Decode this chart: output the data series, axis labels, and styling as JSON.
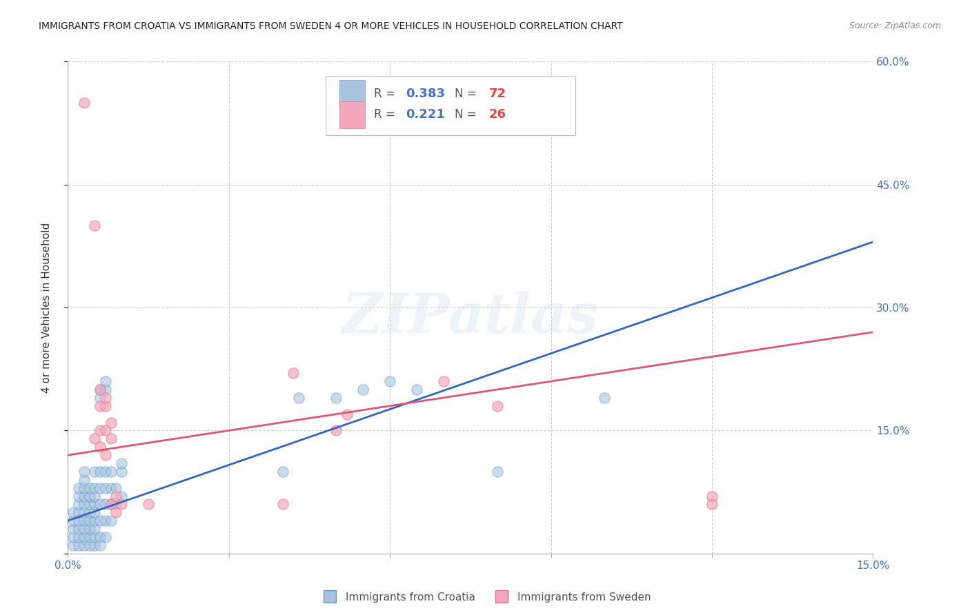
{
  "title": "IMMIGRANTS FROM CROATIA VS IMMIGRANTS FROM SWEDEN 4 OR MORE VEHICLES IN HOUSEHOLD CORRELATION CHART",
  "source": "Source: ZipAtlas.com",
  "ylabel": "4 or more Vehicles in Household",
  "xlim": [
    0.0,
    0.15
  ],
  "ylim": [
    0.0,
    0.6
  ],
  "xticks": [
    0.0,
    0.03,
    0.06,
    0.09,
    0.12,
    0.15
  ],
  "yticks": [
    0.0,
    0.15,
    0.3,
    0.45,
    0.6
  ],
  "right_ytick_labels": [
    "60.0%",
    "45.0%",
    "30.0%",
    "15.0%"
  ],
  "right_yticks": [
    0.6,
    0.45,
    0.3,
    0.15
  ],
  "croatia_color": "#a8c4e0",
  "croatia_edge_color": "#6699cc",
  "sweden_color": "#f4a7b9",
  "sweden_edge_color": "#dd7799",
  "croatia_R": 0.383,
  "croatia_N": 72,
  "sweden_R": 0.221,
  "sweden_N": 26,
  "legend_label_croatia": "Immigrants from Croatia",
  "legend_label_sweden": "Immigrants from Sweden",
  "watermark": "ZIPatlas",
  "background_color": "#ffffff",
  "grid_color": "#cccccc",
  "croatia_line_color": "#3366bb",
  "sweden_line_color": "#dd5577",
  "title_color": "#222222",
  "axis_tick_color": "#4472c4",
  "legend_R_color": "#555555",
  "legend_val_color": "#4472c4",
  "legend_N_color": "#dd4444",
  "croatia_trendline": [
    [
      0.0,
      0.04
    ],
    [
      0.15,
      0.38
    ]
  ],
  "sweden_trendline": [
    [
      0.0,
      0.12
    ],
    [
      0.15,
      0.27
    ]
  ],
  "croatia_scatter": [
    [
      0.001,
      0.01
    ],
    [
      0.001,
      0.02
    ],
    [
      0.001,
      0.03
    ],
    [
      0.001,
      0.04
    ],
    [
      0.001,
      0.05
    ],
    [
      0.002,
      0.01
    ],
    [
      0.002,
      0.02
    ],
    [
      0.002,
      0.03
    ],
    [
      0.002,
      0.04
    ],
    [
      0.002,
      0.05
    ],
    [
      0.002,
      0.06
    ],
    [
      0.002,
      0.07
    ],
    [
      0.002,
      0.08
    ],
    [
      0.003,
      0.01
    ],
    [
      0.003,
      0.02
    ],
    [
      0.003,
      0.03
    ],
    [
      0.003,
      0.04
    ],
    [
      0.003,
      0.05
    ],
    [
      0.003,
      0.06
    ],
    [
      0.003,
      0.07
    ],
    [
      0.003,
      0.08
    ],
    [
      0.003,
      0.09
    ],
    [
      0.003,
      0.1
    ],
    [
      0.004,
      0.01
    ],
    [
      0.004,
      0.02
    ],
    [
      0.004,
      0.03
    ],
    [
      0.004,
      0.04
    ],
    [
      0.004,
      0.05
    ],
    [
      0.004,
      0.06
    ],
    [
      0.004,
      0.07
    ],
    [
      0.004,
      0.08
    ],
    [
      0.005,
      0.01
    ],
    [
      0.005,
      0.02
    ],
    [
      0.005,
      0.03
    ],
    [
      0.005,
      0.04
    ],
    [
      0.005,
      0.05
    ],
    [
      0.005,
      0.06
    ],
    [
      0.005,
      0.07
    ],
    [
      0.005,
      0.08
    ],
    [
      0.005,
      0.1
    ],
    [
      0.006,
      0.02
    ],
    [
      0.006,
      0.04
    ],
    [
      0.006,
      0.06
    ],
    [
      0.006,
      0.08
    ],
    [
      0.006,
      0.1
    ],
    [
      0.006,
      0.19
    ],
    [
      0.006,
      0.2
    ],
    [
      0.007,
      0.02
    ],
    [
      0.007,
      0.04
    ],
    [
      0.007,
      0.06
    ],
    [
      0.007,
      0.08
    ],
    [
      0.007,
      0.1
    ],
    [
      0.007,
      0.2
    ],
    [
      0.007,
      0.21
    ],
    [
      0.008,
      0.04
    ],
    [
      0.008,
      0.06
    ],
    [
      0.008,
      0.08
    ],
    [
      0.008,
      0.1
    ],
    [
      0.009,
      0.06
    ],
    [
      0.009,
      0.08
    ],
    [
      0.01,
      0.07
    ],
    [
      0.01,
      0.1
    ],
    [
      0.01,
      0.11
    ],
    [
      0.04,
      0.1
    ],
    [
      0.043,
      0.19
    ],
    [
      0.05,
      0.19
    ],
    [
      0.055,
      0.2
    ],
    [
      0.06,
      0.21
    ],
    [
      0.065,
      0.2
    ],
    [
      0.08,
      0.1
    ],
    [
      0.1,
      0.19
    ],
    [
      0.006,
      0.01
    ]
  ],
  "sweden_scatter": [
    [
      0.003,
      0.55
    ],
    [
      0.005,
      0.4
    ],
    [
      0.005,
      0.14
    ],
    [
      0.006,
      0.13
    ],
    [
      0.006,
      0.15
    ],
    [
      0.006,
      0.18
    ],
    [
      0.006,
      0.2
    ],
    [
      0.007,
      0.12
    ],
    [
      0.007,
      0.15
    ],
    [
      0.007,
      0.18
    ],
    [
      0.007,
      0.19
    ],
    [
      0.008,
      0.06
    ],
    [
      0.008,
      0.14
    ],
    [
      0.008,
      0.16
    ],
    [
      0.009,
      0.05
    ],
    [
      0.009,
      0.07
    ],
    [
      0.01,
      0.06
    ],
    [
      0.015,
      0.06
    ],
    [
      0.04,
      0.06
    ],
    [
      0.042,
      0.22
    ],
    [
      0.05,
      0.15
    ],
    [
      0.052,
      0.17
    ],
    [
      0.07,
      0.21
    ],
    [
      0.08,
      0.18
    ],
    [
      0.12,
      0.07
    ],
    [
      0.12,
      0.06
    ]
  ]
}
